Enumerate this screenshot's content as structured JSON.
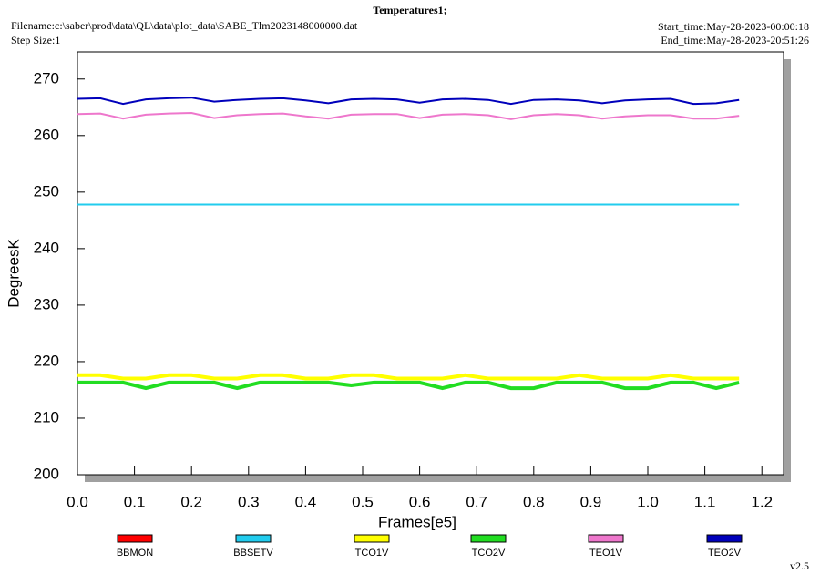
{
  "chart_data": {
    "type": "line",
    "title": "Temperatures1;",
    "filename": "Filename:c:\\saber\\prod\\data\\QL\\data\\plot_data\\SABE_Tlm2023148000000.dat",
    "step_size": "Step Size:1",
    "start_time": "Start_time:May-28-2023-00:00:18",
    "end_time": "End_time:May-28-2023-20:51:26",
    "version": "v2.5",
    "xlabel": "Frames[e5]",
    "ylabel": "DegreesK",
    "x": [
      0,
      0.04,
      0.08,
      0.12,
      0.16,
      0.2,
      0.24,
      0.28,
      0.32,
      0.36,
      0.4,
      0.44,
      0.48,
      0.52,
      0.56,
      0.6,
      0.64,
      0.68,
      0.72,
      0.76,
      0.8,
      0.84,
      0.88,
      0.92,
      0.96,
      1.0,
      1.04,
      1.08,
      1.12,
      1.16
    ],
    "series": [
      {
        "name": "BBMON",
        "color": "#ff0000",
        "values": [
          null,
          null,
          null,
          null,
          null,
          null,
          null,
          null,
          null,
          null,
          null,
          null,
          null,
          null,
          null,
          null,
          null,
          null,
          null,
          null,
          null,
          null,
          null,
          null,
          null,
          null,
          null,
          null,
          null,
          null
        ]
      },
      {
        "name": "BBSETV",
        "color": "#22ccee",
        "values": [
          247.8,
          247.8,
          247.8,
          247.8,
          247.8,
          247.8,
          247.8,
          247.8,
          247.8,
          247.8,
          247.8,
          247.8,
          247.8,
          247.8,
          247.8,
          247.8,
          247.8,
          247.8,
          247.8,
          247.8,
          247.8,
          247.8,
          247.8,
          247.8,
          247.8,
          247.8,
          247.8,
          247.8,
          247.8,
          247.8
        ]
      },
      {
        "name": "TCO1V",
        "color": "#ffff00",
        "values": [
          217.6,
          217.6,
          217.0,
          217.0,
          217.6,
          217.6,
          217.0,
          217.0,
          217.6,
          217.6,
          217.0,
          217.0,
          217.6,
          217.6,
          217.0,
          217.0,
          217.0,
          217.6,
          217.0,
          217.0,
          217.0,
          217.0,
          217.6,
          217.0,
          217.0,
          217.0,
          217.6,
          217.0,
          217.0,
          217.0
        ]
      },
      {
        "name": "TCO2V",
        "color": "#22dd22",
        "values": [
          216.3,
          216.3,
          216.3,
          215.3,
          216.3,
          216.3,
          216.3,
          215.3,
          216.3,
          216.3,
          216.3,
          216.3,
          215.8,
          216.3,
          216.3,
          216.3,
          215.3,
          216.3,
          216.3,
          215.3,
          215.3,
          216.3,
          216.3,
          216.3,
          215.3,
          215.3,
          216.3,
          216.3,
          215.3,
          216.3
        ]
      },
      {
        "name": "TEO1V",
        "color": "#ee77cc",
        "values": [
          263.8,
          263.9,
          263.0,
          263.7,
          263.9,
          264.0,
          263.1,
          263.6,
          263.8,
          263.9,
          263.4,
          263.0,
          263.7,
          263.8,
          263.8,
          263.1,
          263.7,
          263.8,
          263.6,
          262.9,
          263.6,
          263.8,
          263.6,
          263.0,
          263.4,
          263.6,
          263.6,
          263.0,
          263.0,
          263.5
        ]
      },
      {
        "name": "TEO2V",
        "color": "#0000bb",
        "values": [
          266.5,
          266.6,
          265.6,
          266.4,
          266.6,
          266.7,
          266.0,
          266.3,
          266.5,
          266.6,
          266.2,
          265.7,
          266.4,
          266.5,
          266.4,
          265.8,
          266.4,
          266.5,
          266.3,
          265.6,
          266.3,
          266.4,
          266.2,
          265.7,
          266.2,
          266.4,
          266.5,
          265.6,
          265.7,
          266.3
        ]
      }
    ],
    "xlim": [
      0,
      1.238
    ],
    "ylim": [
      200,
      274.8
    ],
    "xticks": [
      {
        "value": 0,
        "label": "0.0"
      },
      0.1,
      0.2,
      0.3,
      0.4,
      0.5,
      0.6,
      0.7,
      0.8,
      0.9,
      {
        "value": 1,
        "label": "1.0"
      },
      1.1,
      1.2
    ],
    "yticks": [
      200,
      210,
      220,
      230,
      240,
      250,
      260,
      270
    ]
  }
}
